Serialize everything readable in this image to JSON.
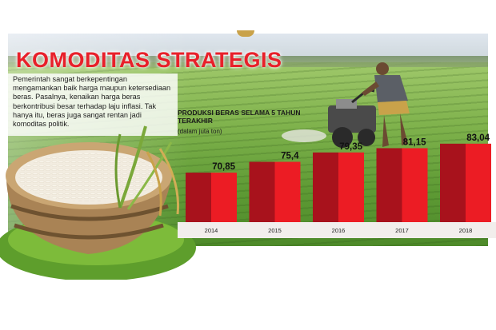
{
  "title": "KOMODITAS STRATEGIS",
  "description": "Pemerintah sangat berkepentingan mengamankan baik harga maupun ketersediaan beras. Pasalnya, kenaikan harga beras berkontribusi besar terhadap laju inflasi. Tak hanya itu, beras juga sangat rentan jadi komoditas politik.",
  "colors": {
    "title": "#e8202a",
    "bar_dark": "#a8121c",
    "bar_light": "#ec1c24",
    "ground": "#f2eeec"
  },
  "chart_data": {
    "type": "bar",
    "title": "PRODUKSI BERAS SELAMA 5 TAHUN TERAKHIR",
    "subtitle": "(dalam juta ton)",
    "categories": [
      "2014",
      "2015",
      "2016",
      "2017",
      "2018"
    ],
    "values": [
      70.85,
      75.4,
      79.35,
      81.15,
      83.04
    ],
    "value_labels": [
      "70,85",
      "75,4",
      "79,35",
      "81,15",
      "83,04"
    ],
    "xlabel": "",
    "ylabel": "",
    "ylim": [
      50,
      85
    ],
    "grid": false,
    "legend": "none"
  }
}
